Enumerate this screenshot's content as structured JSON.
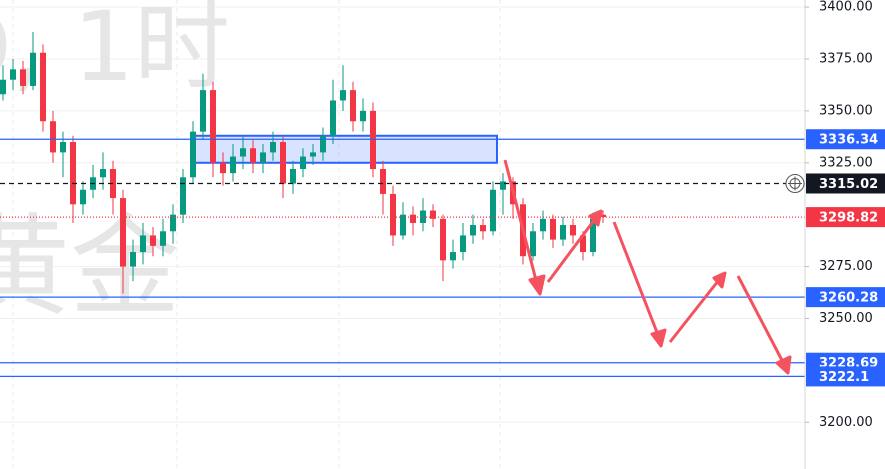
{
  "chart_data": {
    "type": "candlestick",
    "watermark": [
      "D, 1时",
      "黄金"
    ],
    "ylim": [
      3177.5,
      3403.4
    ],
    "yticks": [
      {
        "value": 3200,
        "label": "3200.00"
      },
      {
        "value": 3250,
        "label": "3250.00"
      },
      {
        "value": 3275,
        "label": "3275.00"
      },
      {
        "value": 3325,
        "label": "3325.00"
      },
      {
        "value": 3350,
        "label": "3350.00"
      },
      {
        "value": 3375,
        "label": "3375.00"
      },
      {
        "value": 3400,
        "label": "3400.00"
      }
    ],
    "grid": true,
    "up_color": "#089981",
    "down_color": "#f23645",
    "candles": [
      [
        3358,
        3372,
        3355,
        3365
      ],
      [
        3365,
        3375,
        3360,
        3370
      ],
      [
        3370,
        3374,
        3358,
        3362
      ],
      [
        3362,
        3388,
        3360,
        3378
      ],
      [
        3378,
        3382,
        3340,
        3345
      ],
      [
        3345,
        3350,
        3325,
        3330
      ],
      [
        3330,
        3340,
        3318,
        3335
      ],
      [
        3335,
        3338,
        3296,
        3305
      ],
      [
        3305,
        3316,
        3300,
        3312
      ],
      [
        3312,
        3324,
        3308,
        3318
      ],
      [
        3318,
        3330,
        3312,
        3322
      ],
      [
        3322,
        3326,
        3300,
        3308
      ],
      [
        3308,
        3312,
        3262,
        3275
      ],
      [
        3275,
        3288,
        3268,
        3282
      ],
      [
        3282,
        3296,
        3276,
        3290
      ],
      [
        3290,
        3294,
        3280,
        3285
      ],
      [
        3285,
        3298,
        3280,
        3292
      ],
      [
        3292,
        3305,
        3286,
        3300
      ],
      [
        3300,
        3322,
        3296,
        3318
      ],
      [
        3318,
        3345,
        3315,
        3340
      ],
      [
        3340,
        3368,
        3336,
        3360
      ],
      [
        3360,
        3364,
        3318,
        3325
      ],
      [
        3325,
        3330,
        3314,
        3320
      ],
      [
        3320,
        3334,
        3316,
        3328
      ],
      [
        3328,
        3338,
        3322,
        3332
      ],
      [
        3332,
        3336,
        3320,
        3325
      ],
      [
        3325,
        3334,
        3320,
        3330
      ],
      [
        3330,
        3340,
        3326,
        3335
      ],
      [
        3335,
        3338,
        3308,
        3315
      ],
      [
        3315,
        3326,
        3310,
        3322
      ],
      [
        3322,
        3332,
        3318,
        3328
      ],
      [
        3328,
        3334,
        3324,
        3330
      ],
      [
        3330,
        3342,
        3326,
        3338
      ],
      [
        3338,
        3365,
        3334,
        3355
      ],
      [
        3355,
        3372,
        3350,
        3360
      ],
      [
        3360,
        3364,
        3340,
        3345
      ],
      [
        3345,
        3356,
        3340,
        3350
      ],
      [
        3350,
        3354,
        3318,
        3322
      ],
      [
        3322,
        3326,
        3300,
        3310
      ],
      [
        3310,
        3314,
        3285,
        3290
      ],
      [
        3290,
        3306,
        3288,
        3300
      ],
      [
        3300,
        3304,
        3290,
        3296
      ],
      [
        3296,
        3308,
        3292,
        3302
      ],
      [
        3302,
        3305,
        3294,
        3298
      ],
      [
        3298,
        3300,
        3268,
        3278
      ],
      [
        3278,
        3288,
        3274,
        3282
      ],
      [
        3282,
        3296,
        3278,
        3290
      ],
      [
        3290,
        3300,
        3286,
        3295
      ],
      [
        3295,
        3298,
        3288,
        3292
      ],
      [
        3292,
        3316,
        3290,
        3312
      ],
      [
        3312,
        3320,
        3300,
        3316
      ],
      [
        3316,
        3318,
        3298,
        3305
      ],
      [
        3305,
        3308,
        3276,
        3280
      ],
      [
        3280,
        3296,
        3278,
        3292
      ],
      [
        3292,
        3302,
        3288,
        3298
      ],
      [
        3298,
        3300,
        3284,
        3288
      ],
      [
        3288,
        3299,
        3285,
        3295
      ],
      [
        3295,
        3298,
        3286,
        3290
      ],
      [
        3290,
        3292,
        3278,
        3282
      ],
      [
        3282,
        3301,
        3280,
        3298
      ],
      [
        3300,
        3302,
        3296,
        3298.82
      ]
    ],
    "zone": {
      "high": 3338,
      "low": 3325,
      "color": "#2962ff"
    },
    "levels": [
      {
        "value": 3336.34,
        "color": "#2962ff",
        "style": "solid"
      },
      {
        "value": 3315.02,
        "color": "#131722",
        "style": "dashed"
      },
      {
        "value": 3298.82,
        "color": "#f23645",
        "style": "dotted"
      },
      {
        "value": 3260.28,
        "color": "#2962ff",
        "style": "solid"
      },
      {
        "value": 3228.69,
        "color": "#2962ff",
        "style": "solid"
      },
      {
        "value": 3222.1,
        "color": "#2962ff",
        "style": "solid"
      }
    ]
  }
}
